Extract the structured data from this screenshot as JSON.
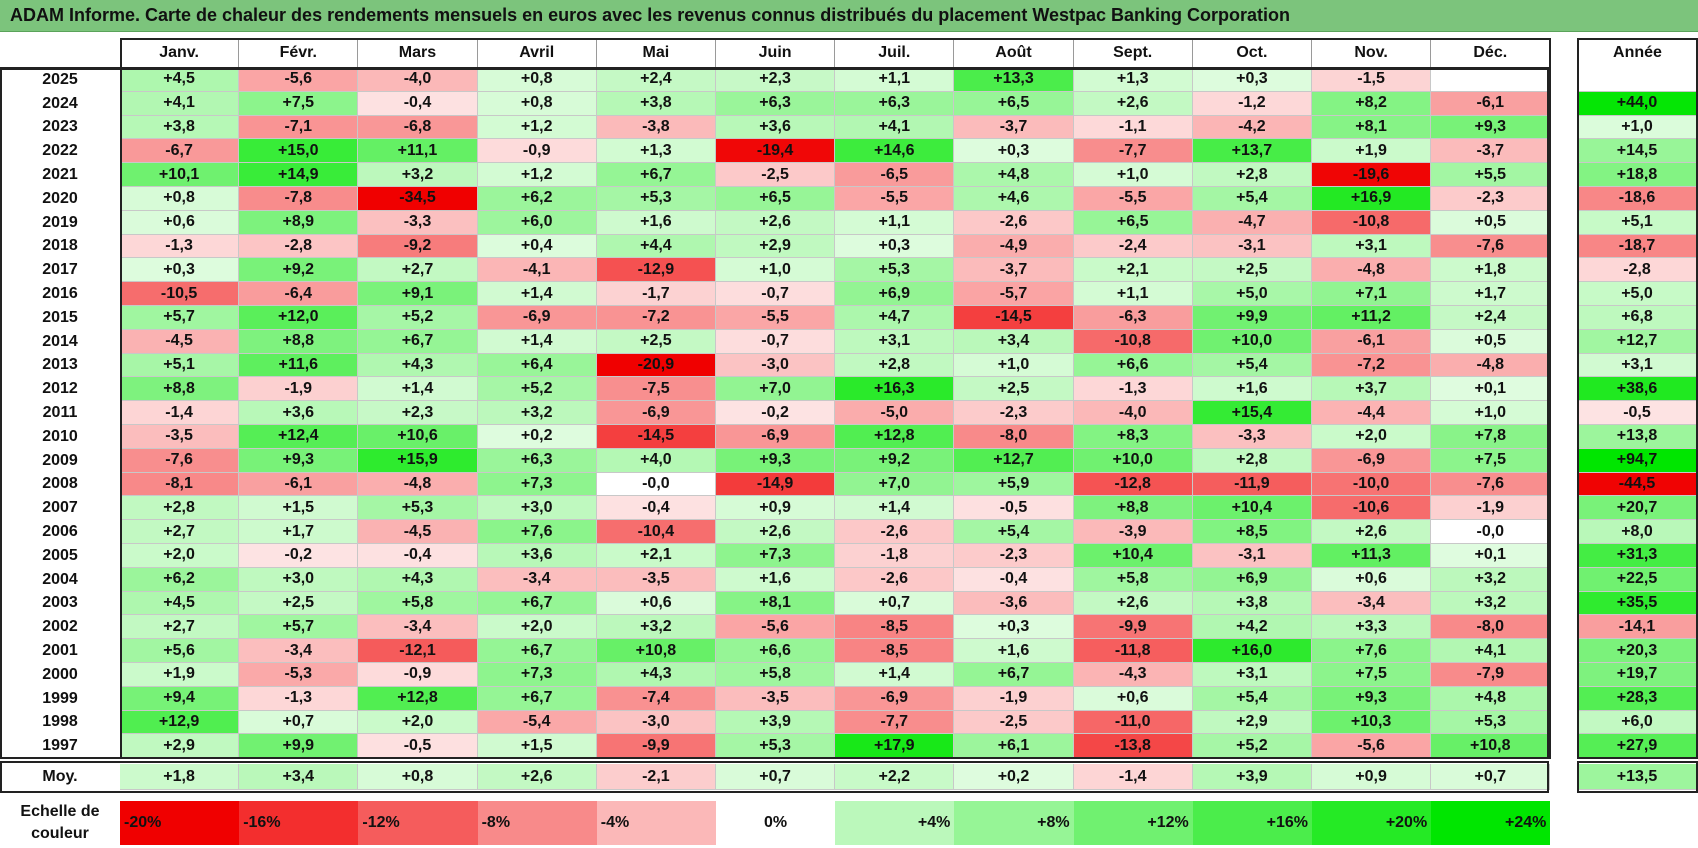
{
  "title": "ADAM Informe. Carte de chaleur des rendements mensuels en euros avec les revenus connus distribués du placement Westpac Banking Corporation",
  "chart_data": {
    "type": "heatmap",
    "columns": [
      "Janv.",
      "Févr.",
      "Mars",
      "Avril",
      "Mai",
      "Juin",
      "Juil.",
      "Août",
      "Sept.",
      "Oct.",
      "Nov.",
      "Déc."
    ],
    "annual_header": "Année",
    "rows": [
      {
        "year": "2025",
        "values": [
          "+4,5",
          "-5,6",
          "-4,0",
          "+0,8",
          "+2,4",
          "+2,3",
          "+1,1",
          "+13,3",
          "+1,3",
          "+0,3",
          "-1,5",
          ""
        ],
        "annual": ""
      },
      {
        "year": "2024",
        "values": [
          "+4,1",
          "+7,5",
          "-0,4",
          "+0,8",
          "+3,8",
          "+6,3",
          "+6,3",
          "+6,5",
          "+2,6",
          "-1,2",
          "+8,2",
          "-6,1"
        ],
        "annual": "+44,0"
      },
      {
        "year": "2023",
        "values": [
          "+3,8",
          "-7,1",
          "-6,8",
          "+1,2",
          "-3,8",
          "+3,6",
          "+4,1",
          "-3,7",
          "-1,1",
          "-4,2",
          "+8,1",
          "+9,3"
        ],
        "annual": "+1,0"
      },
      {
        "year": "2022",
        "values": [
          "-6,7",
          "+15,0",
          "+11,1",
          "-0,9",
          "+1,3",
          "-19,4",
          "+14,6",
          "+0,3",
          "-7,7",
          "+13,7",
          "+1,9",
          "-3,7"
        ],
        "annual": "+14,5"
      },
      {
        "year": "2021",
        "values": [
          "+10,1",
          "+14,9",
          "+3,2",
          "+1,2",
          "+6,7",
          "-2,5",
          "-6,5",
          "+4,8",
          "+1,0",
          "+2,8",
          "-19,6",
          "+5,5"
        ],
        "annual": "+18,8"
      },
      {
        "year": "2020",
        "values": [
          "+0,8",
          "-7,8",
          "-34,5",
          "+6,2",
          "+5,3",
          "+6,5",
          "-5,5",
          "+4,6",
          "-5,5",
          "+5,4",
          "+16,9",
          "-2,3"
        ],
        "annual": "-18,6"
      },
      {
        "year": "2019",
        "values": [
          "+0,6",
          "+8,9",
          "-3,3",
          "+6,0",
          "+1,6",
          "+2,6",
          "+1,1",
          "-2,6",
          "+6,5",
          "-4,7",
          "-10,8",
          "+0,5"
        ],
        "annual": "+5,1"
      },
      {
        "year": "2018",
        "values": [
          "-1,3",
          "-2,8",
          "-9,2",
          "+0,4",
          "+4,4",
          "+2,9",
          "+0,3",
          "-4,9",
          "-2,4",
          "-3,1",
          "+3,1",
          "-7,6"
        ],
        "annual": "-18,7"
      },
      {
        "year": "2017",
        "values": [
          "+0,3",
          "+9,2",
          "+2,7",
          "-4,1",
          "-12,9",
          "+1,0",
          "+5,3",
          "-3,7",
          "+2,1",
          "+2,5",
          "-4,8",
          "+1,8"
        ],
        "annual": "-2,8"
      },
      {
        "year": "2016",
        "values": [
          "-10,5",
          "-6,4",
          "+9,1",
          "+1,4",
          "-1,7",
          "-0,7",
          "+6,9",
          "-5,7",
          "+1,1",
          "+5,0",
          "+7,1",
          "+1,7"
        ],
        "annual": "+5,0"
      },
      {
        "year": "2015",
        "values": [
          "+5,7",
          "+12,0",
          "+5,2",
          "-6,9",
          "-7,2",
          "-5,5",
          "+4,7",
          "-14,5",
          "-6,3",
          "+9,9",
          "+11,2",
          "+2,4"
        ],
        "annual": "+6,8"
      },
      {
        "year": "2014",
        "values": [
          "-4,5",
          "+8,8",
          "+6,7",
          "+1,4",
          "+2,5",
          "-0,7",
          "+3,1",
          "+3,4",
          "-10,8",
          "+10,0",
          "-6,1",
          "+0,5"
        ],
        "annual": "+12,7"
      },
      {
        "year": "2013",
        "values": [
          "+5,1",
          "+11,6",
          "+4,3",
          "+6,4",
          "-20,9",
          "-3,0",
          "+2,8",
          "+1,0",
          "+6,6",
          "+5,4",
          "-7,2",
          "-4,8"
        ],
        "annual": "+3,1"
      },
      {
        "year": "2012",
        "values": [
          "+8,8",
          "-1,9",
          "+1,4",
          "+5,2",
          "-7,5",
          "+7,0",
          "+16,3",
          "+2,5",
          "-1,3",
          "+1,6",
          "+3,7",
          "+0,1"
        ],
        "annual": "+38,6"
      },
      {
        "year": "2011",
        "values": [
          "-1,4",
          "+3,6",
          "+2,3",
          "+3,2",
          "-6,9",
          "-0,2",
          "-5,0",
          "-2,3",
          "-4,0",
          "+15,4",
          "-4,4",
          "+1,0"
        ],
        "annual": "-0,5"
      },
      {
        "year": "2010",
        "values": [
          "-3,5",
          "+12,4",
          "+10,6",
          "+0,2",
          "-14,5",
          "-6,9",
          "+12,8",
          "-8,0",
          "+8,3",
          "-3,3",
          "+2,0",
          "+7,8"
        ],
        "annual": "+13,8"
      },
      {
        "year": "2009",
        "values": [
          "-7,6",
          "+9,3",
          "+15,9",
          "+6,3",
          "+4,0",
          "+9,3",
          "+9,2",
          "+12,7",
          "+10,0",
          "+2,8",
          "-6,9",
          "+7,5"
        ],
        "annual": "+94,7"
      },
      {
        "year": "2008",
        "values": [
          "-8,1",
          "-6,1",
          "-4,8",
          "+7,3",
          "-0,0",
          "-14,9",
          "+7,0",
          "+5,9",
          "-12,8",
          "-11,9",
          "-10,0",
          "-7,6"
        ],
        "annual": "-44,5"
      },
      {
        "year": "2007",
        "values": [
          "+2,8",
          "+1,5",
          "+5,3",
          "+3,0",
          "-0,4",
          "+0,9",
          "+1,4",
          "-0,5",
          "+8,8",
          "+10,4",
          "-10,6",
          "-1,9"
        ],
        "annual": "+20,7"
      },
      {
        "year": "2006",
        "values": [
          "+2,7",
          "+1,7",
          "-4,5",
          "+7,6",
          "-10,4",
          "+2,6",
          "-2,6",
          "+5,4",
          "-3,9",
          "+8,5",
          "+2,6",
          "-0,0"
        ],
        "annual": "+8,0"
      },
      {
        "year": "2005",
        "values": [
          "+2,0",
          "-0,2",
          "-0,4",
          "+3,6",
          "+2,1",
          "+7,3",
          "-1,8",
          "-2,3",
          "+10,4",
          "-3,1",
          "+11,3",
          "+0,1"
        ],
        "annual": "+31,3"
      },
      {
        "year": "2004",
        "values": [
          "+6,2",
          "+3,0",
          "+4,3",
          "-3,4",
          "-3,5",
          "+1,6",
          "-2,6",
          "-0,4",
          "+5,8",
          "+6,9",
          "+0,6",
          "+3,2"
        ],
        "annual": "+22,5"
      },
      {
        "year": "2003",
        "values": [
          "+4,5",
          "+2,5",
          "+5,8",
          "+6,7",
          "+0,6",
          "+8,1",
          "+0,7",
          "-3,6",
          "+2,6",
          "+3,8",
          "-3,4",
          "+3,2"
        ],
        "annual": "+35,5"
      },
      {
        "year": "2002",
        "values": [
          "+2,7",
          "+5,7",
          "-3,4",
          "+2,0",
          "+3,2",
          "-5,6",
          "-8,5",
          "+0,3",
          "-9,9",
          "+4,2",
          "+3,3",
          "-8,0"
        ],
        "annual": "-14,1"
      },
      {
        "year": "2001",
        "values": [
          "+5,6",
          "-3,4",
          "-12,1",
          "+6,7",
          "+10,8",
          "+6,6",
          "-8,5",
          "+1,6",
          "-11,8",
          "+16,0",
          "+7,6",
          "+4,1"
        ],
        "annual": "+20,3"
      },
      {
        "year": "2000",
        "values": [
          "+1,9",
          "-5,3",
          "-0,9",
          "+7,3",
          "+4,3",
          "+5,8",
          "+1,4",
          "+6,7",
          "-4,3",
          "+3,1",
          "+7,5",
          "-7,9"
        ],
        "annual": "+19,7"
      },
      {
        "year": "1999",
        "values": [
          "+9,4",
          "-1,3",
          "+12,8",
          "+6,7",
          "-7,4",
          "-3,5",
          "-6,9",
          "-1,9",
          "+0,6",
          "+5,4",
          "+9,3",
          "+4,8"
        ],
        "annual": "+28,3"
      },
      {
        "year": "1998",
        "values": [
          "+12,9",
          "+0,7",
          "+2,0",
          "-5,4",
          "-3,0",
          "+3,9",
          "-7,7",
          "-2,5",
          "-11,0",
          "+2,9",
          "+10,3",
          "+5,3"
        ],
        "annual": "+6,0"
      },
      {
        "year": "1997",
        "values": [
          "+2,9",
          "+9,9",
          "-0,5",
          "+1,5",
          "-9,9",
          "+5,3",
          "+17,9",
          "+6,1",
          "-13,8",
          "+5,2",
          "-5,6",
          "+10,8"
        ],
        "annual": "+27,9"
      }
    ],
    "average": {
      "label": "Moy.",
      "values": [
        "+1,8",
        "+3,4",
        "+0,8",
        "+2,6",
        "-2,1",
        "+0,7",
        "+2,2",
        "+0,2",
        "-1,4",
        "+3,9",
        "+0,9",
        "+0,7"
      ],
      "annual": "+13,5"
    },
    "scale": {
      "label": "Echelle de couleur",
      "steps": [
        "-20%",
        "-16%",
        "-12%",
        "-8%",
        "-4%",
        "0%",
        "+4%",
        "+8%",
        "+12%",
        "+16%",
        "+20%",
        "+24%"
      ]
    }
  }
}
